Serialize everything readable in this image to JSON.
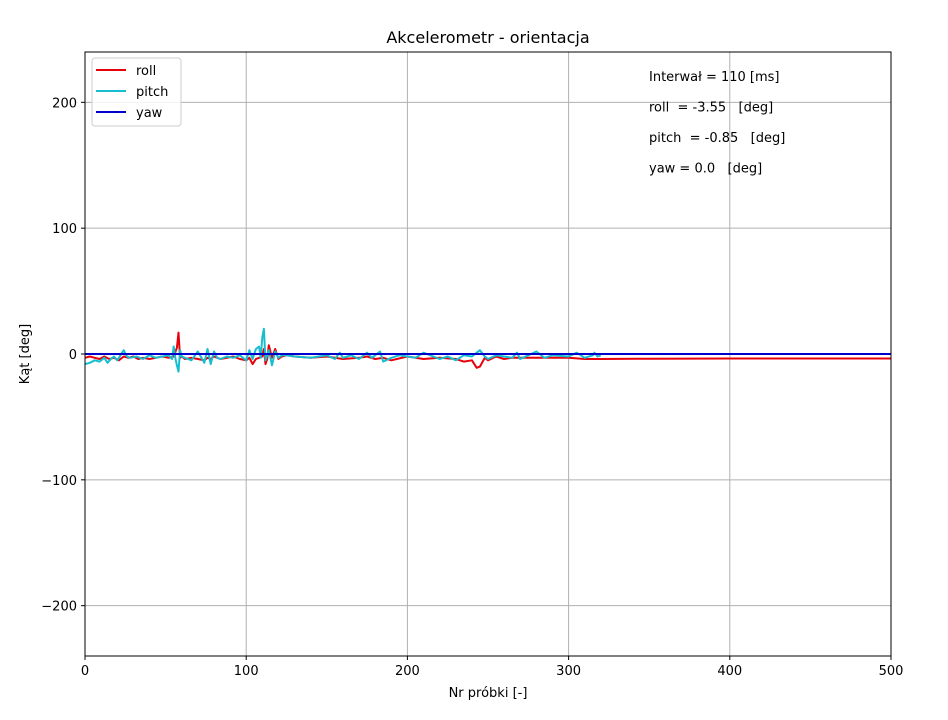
{
  "chart_data": {
    "type": "line",
    "title": "Akcelerometr - orientacja",
    "xlabel": "Nr próbki [-]",
    "ylabel": "Kąt [deg]",
    "xlim": [
      0,
      500
    ],
    "ylim": [
      -240,
      240
    ],
    "xticks": [
      0,
      100,
      200,
      300,
      400,
      500
    ],
    "yticks": [
      -200,
      -100,
      0,
      100,
      200
    ],
    "ytick_labels": [
      "−200",
      "−100",
      "0",
      "100",
      "200"
    ],
    "grid": true,
    "legend_position": "top-left",
    "annotations": [
      "Interwał = 110 [ms]",
      "roll  = -3.55   [deg]",
      "pitch  = -0.85   [deg]",
      "yaw = 0.0   [deg]"
    ],
    "series": [
      {
        "name": "roll",
        "color": "#e8000b",
        "x": [
          0,
          3,
          6,
          9,
          12,
          15,
          18,
          21,
          24,
          27,
          30,
          33,
          36,
          40,
          44,
          48,
          52,
          55,
          57,
          58,
          59,
          60,
          62,
          66,
          70,
          74,
          76,
          78,
          80,
          82,
          84,
          88,
          92,
          96,
          100,
          102,
          104,
          106,
          108,
          110,
          111,
          112,
          113,
          114,
          116,
          118,
          120,
          122,
          125,
          130,
          140,
          150,
          160,
          170,
          175,
          180,
          185,
          190,
          200,
          210,
          220,
          230,
          235,
          240,
          243,
          245,
          248,
          250,
          255,
          260,
          265,
          270,
          280,
          290,
          300,
          310,
          320,
          350,
          400,
          450,
          500
        ],
        "y": [
          -3,
          -2,
          -3,
          -4,
          -2,
          -4,
          -3,
          -5,
          -2,
          -3,
          -2,
          -4,
          -3,
          -4,
          -3,
          -2,
          -3,
          -2,
          5,
          17,
          -3,
          -2,
          -4,
          -3,
          -4,
          -5,
          -3,
          -4,
          -2,
          -3,
          -4,
          -3,
          -2,
          -4,
          -5,
          -3,
          -8,
          -4,
          -3,
          -2,
          4,
          -8,
          -4,
          7,
          -3,
          4,
          -4,
          -2,
          -1,
          -2,
          -3,
          -2,
          -4,
          -3,
          -2,
          -4,
          -3,
          -5,
          -2,
          -4,
          -3,
          -4,
          -6,
          -5,
          -11,
          -10,
          -3,
          -5,
          -2,
          -4,
          -3,
          -3,
          -3,
          -3,
          -3,
          -4,
          -4,
          -3.7,
          -3.6,
          -3.55,
          -3.55
        ]
      },
      {
        "name": "pitch",
        "color": "#17becf",
        "x": [
          0,
          3,
          6,
          9,
          12,
          14,
          16,
          18,
          20,
          22,
          24,
          26,
          28,
          32,
          36,
          40,
          44,
          48,
          52,
          54,
          55,
          56,
          57,
          58,
          59,
          60,
          62,
          66,
          70,
          74,
          76,
          78,
          80,
          82,
          84,
          88,
          92,
          96,
          100,
          102,
          104,
          106,
          108,
          109,
          110,
          111,
          112,
          114,
          116,
          118,
          120,
          122,
          125,
          130,
          140,
          150,
          155,
          158,
          160,
          165,
          170,
          175,
          178,
          180,
          183,
          185,
          190,
          195,
          200,
          205,
          210,
          220,
          225,
          230,
          235,
          240,
          243,
          245,
          248,
          250,
          255,
          260,
          265,
          268,
          270,
          275,
          280,
          285,
          290,
          300,
          305,
          310,
          315,
          316,
          318,
          320
        ],
        "y": [
          -8,
          -7,
          -5,
          -6,
          -3,
          -7,
          -4,
          -2,
          -5,
          -1,
          3,
          -2,
          -3,
          -2,
          -4,
          -1,
          -3,
          -2,
          -1,
          -4,
          6,
          -3,
          -9,
          -14,
          3,
          -2,
          -3,
          -5,
          2,
          -7,
          4,
          -8,
          2,
          -3,
          -4,
          -2,
          -3,
          -1,
          -5,
          3,
          -4,
          4,
          6,
          -3,
          13,
          20,
          -5,
          3,
          -9,
          2,
          -3,
          -1,
          -1,
          -2,
          -3,
          -1,
          -4,
          1,
          -3,
          -1,
          -4,
          1,
          -3,
          -1,
          2,
          -6,
          -3,
          -1,
          -2,
          -3,
          1,
          -4,
          -2,
          -5,
          -1,
          -2,
          1,
          3,
          -2,
          -4,
          -1,
          -2,
          -3,
          1,
          -4,
          -1,
          2,
          -3,
          -1,
          -2,
          1,
          -3,
          -1,
          1,
          -2,
          -1
        ]
      },
      {
        "name": "yaw",
        "color": "#0000cd",
        "x": [
          0,
          500
        ],
        "y": [
          0,
          0
        ]
      }
    ]
  }
}
